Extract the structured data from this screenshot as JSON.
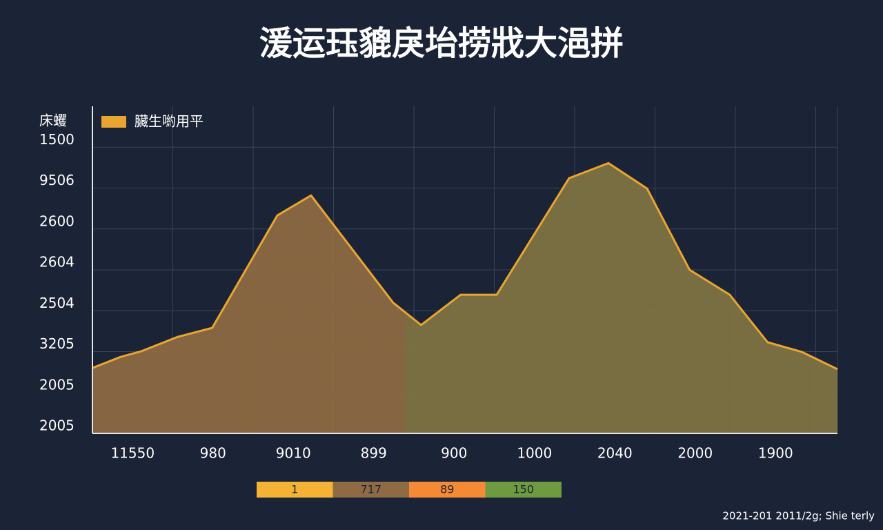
{
  "chart_data": {
    "type": "area",
    "title": "湲运珏貔戾坮捞戕大浥拼",
    "y_label": "床蠼",
    "x": [
      0,
      0.35,
      0.61,
      1.06,
      1.49,
      2.3,
      2.72,
      3.74,
      4.09,
      4.58,
      5.03,
      5.93,
      6.42,
      6.9,
      7.43,
      7.93,
      8.4,
      8.83,
      9.27
    ],
    "series": [
      {
        "name": "臟生喲用平",
        "color": "#e8a630",
        "values": [
          1.6,
          1.87,
          2.01,
          2.36,
          2.58,
          5.33,
          5.82,
          3.2,
          2.65,
          3.39,
          3.39,
          6.24,
          6.61,
          5.99,
          4.0,
          3.39,
          2.23,
          1.99,
          1.57
        ]
      }
    ],
    "xlim": [
      0,
      9.27
    ],
    "xticks": [
      {
        "value": 0.5,
        "label": "11550"
      },
      {
        "value": 1.5,
        "label": "980"
      },
      {
        "value": 2.5,
        "label": "9010"
      },
      {
        "value": 3.5,
        "label": "899"
      },
      {
        "value": 4.5,
        "label": "900"
      },
      {
        "value": 5.5,
        "label": "1000"
      },
      {
        "value": 6.5,
        "label": "2040"
      },
      {
        "value": 7.5,
        "label": "2000"
      },
      {
        "value": 8.5,
        "label": "1900"
      }
    ],
    "ylim": [
      0,
      8
    ],
    "yticks": [
      {
        "value": 0,
        "label": "2005"
      },
      {
        "value": 1,
        "label": "2005"
      },
      {
        "value": 2,
        "label": "3205"
      },
      {
        "value": 3,
        "label": "2504"
      },
      {
        "value": 4,
        "label": "2604"
      },
      {
        "value": 5,
        "label": "2600"
      },
      {
        "value": 6,
        "label": "9506"
      },
      {
        "value": 7,
        "label": "1500"
      }
    ],
    "grid": true,
    "legend": "top-left"
  },
  "color_key": [
    {
      "label": "1",
      "color": "#f5b335"
    },
    {
      "label": "717",
      "color": "#8e6b45"
    },
    {
      "label": "89",
      "color": "#f58a35"
    },
    {
      "label": "150",
      "color": "#6e9a40"
    }
  ],
  "footer": "2021-201 2011/2g; Shie terly"
}
